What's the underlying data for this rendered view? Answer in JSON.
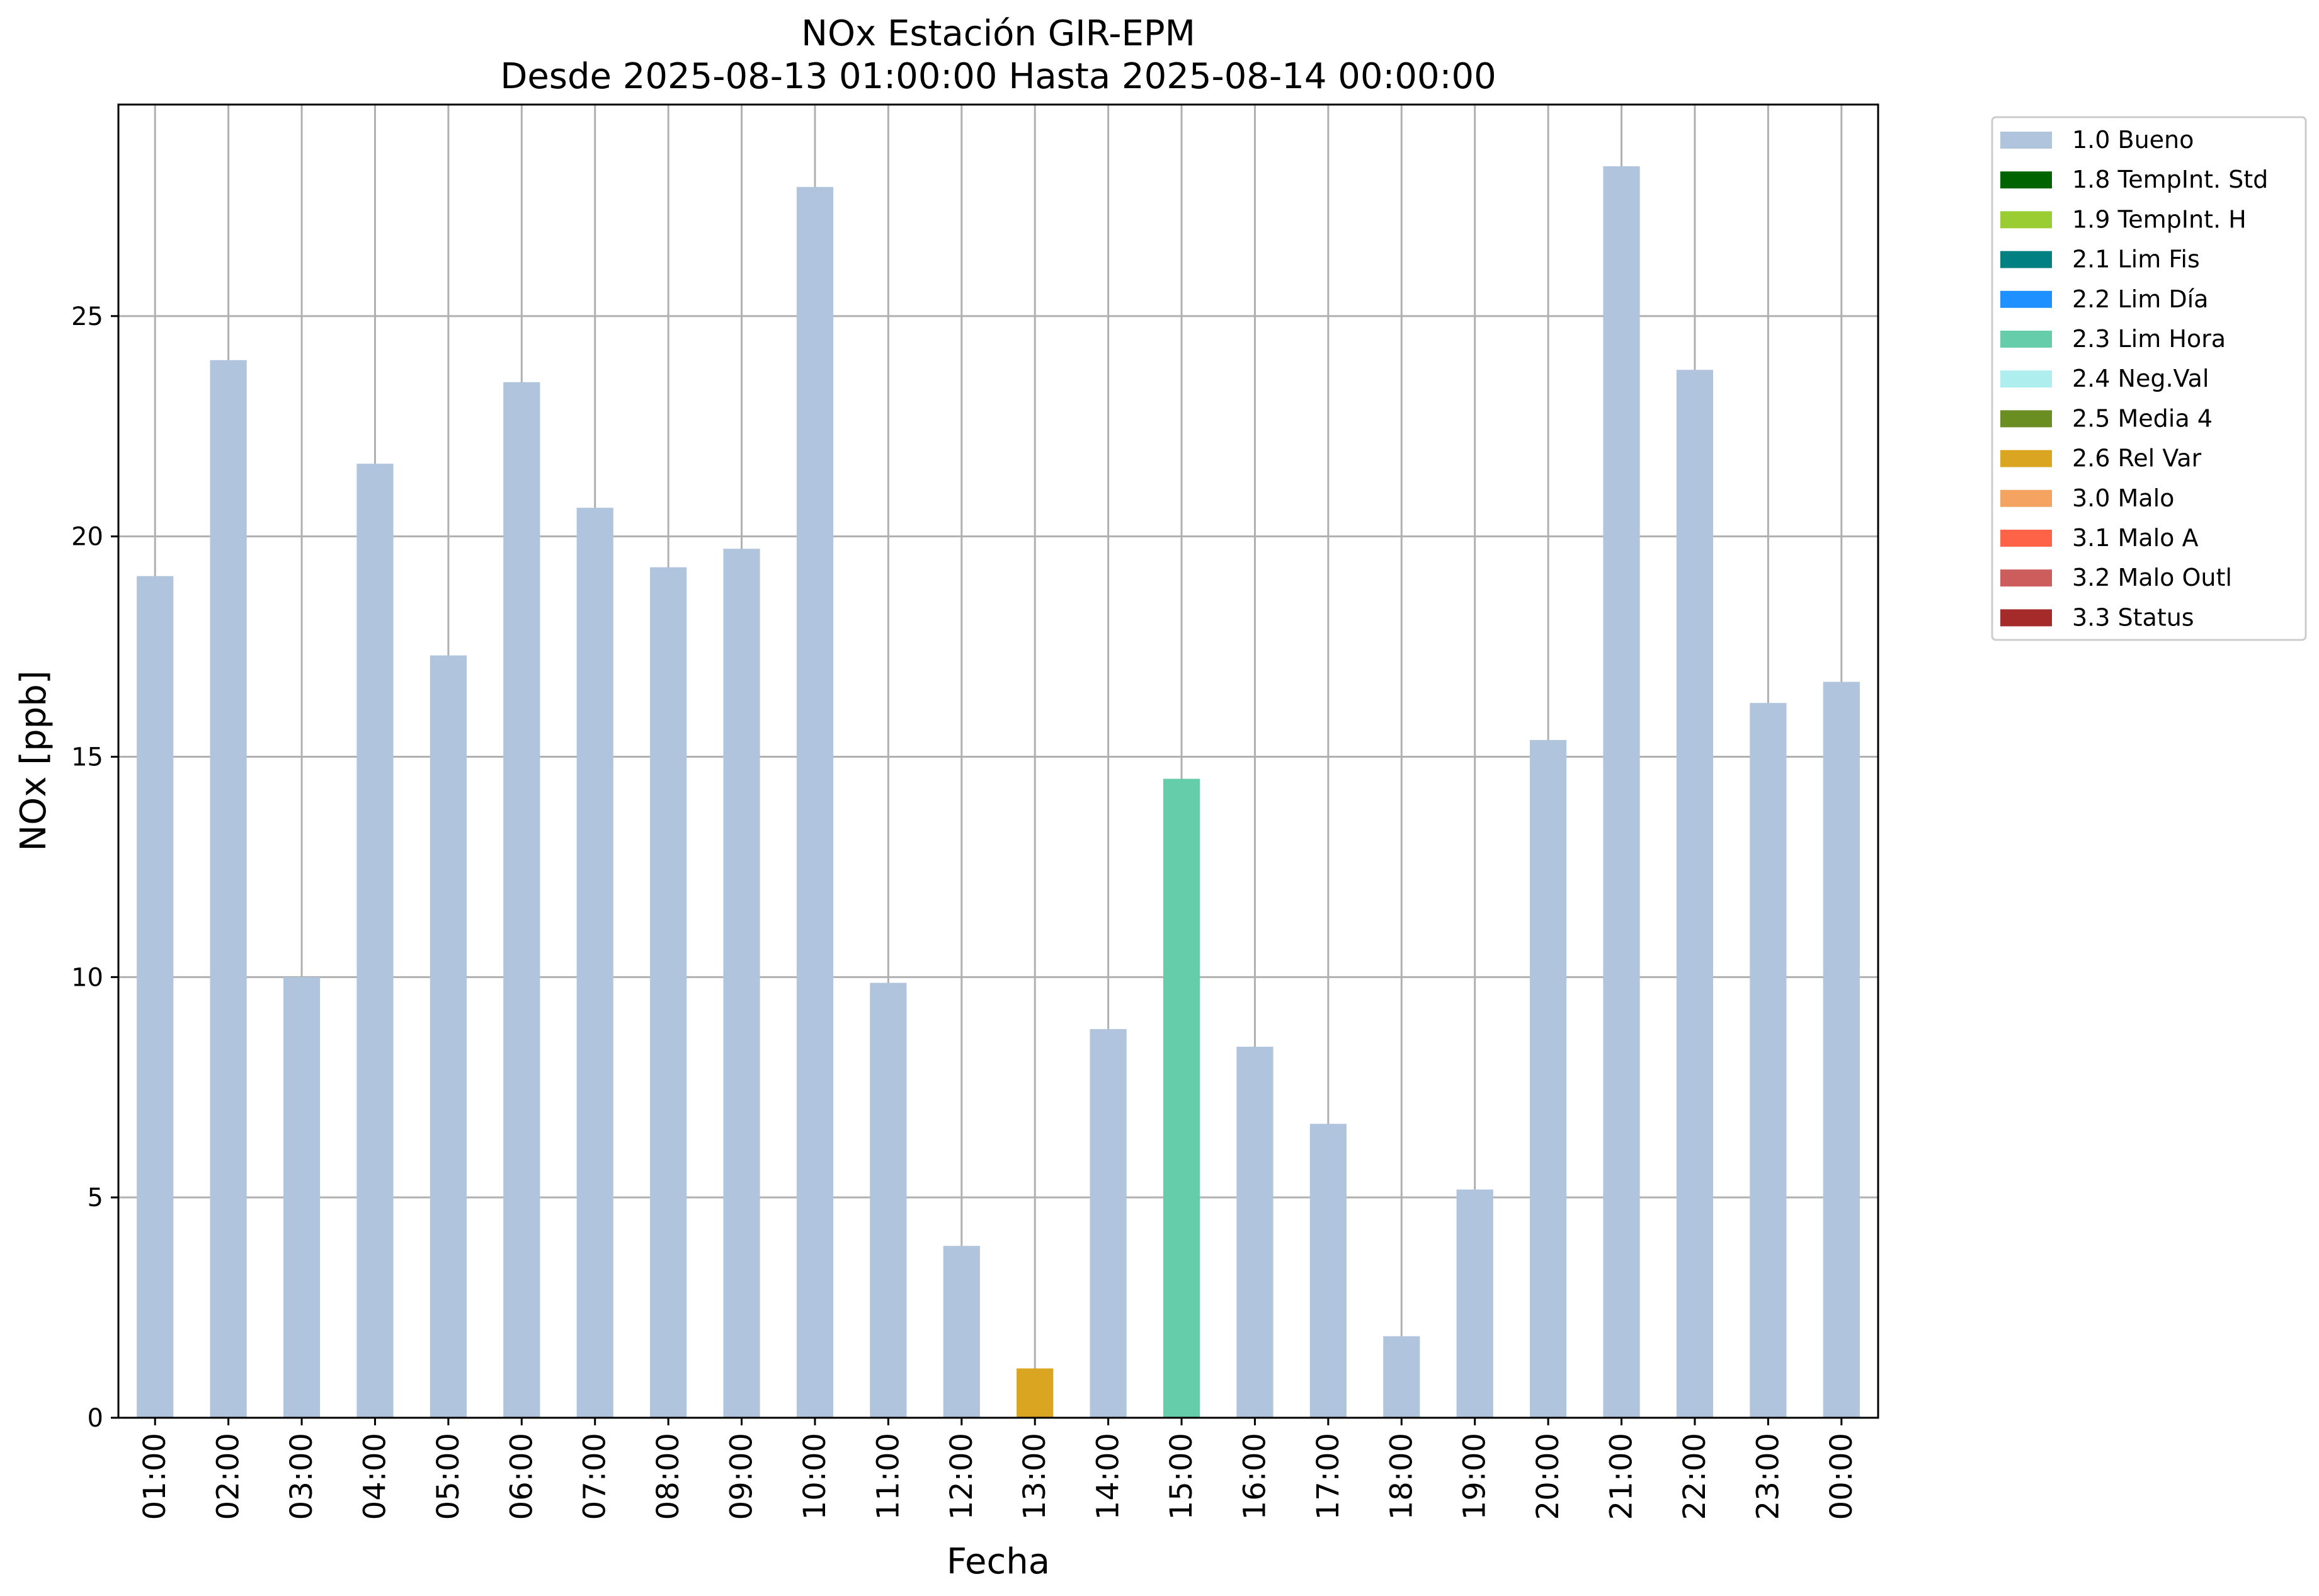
{
  "chart_data": {
    "type": "bar",
    "title": "NOx Estación GIR-EPM",
    "subtitle": "Desde 2025-08-13 01:00:00 Hasta 2025-08-14 00:00:00",
    "xlabel": "Fecha",
    "ylabel": "NOx [ppb]",
    "ylim": [
      0,
      29.8
    ],
    "yticks": [
      0,
      5,
      10,
      15,
      20,
      25
    ],
    "grid": true,
    "legend_position": "outside-top-right",
    "categories": [
      "01:00",
      "02:00",
      "03:00",
      "04:00",
      "05:00",
      "06:00",
      "07:00",
      "08:00",
      "09:00",
      "10:00",
      "11:00",
      "12:00",
      "13:00",
      "14:00",
      "15:00",
      "16:00",
      "17:00",
      "18:00",
      "19:00",
      "20:00",
      "21:00",
      "22:00",
      "23:00",
      "00:00"
    ],
    "values": [
      19.1,
      24.0,
      10.0,
      21.65,
      17.3,
      23.5,
      20.65,
      19.3,
      19.72,
      27.93,
      9.87,
      3.9,
      1.12,
      8.82,
      14.5,
      8.42,
      6.67,
      1.85,
      5.18,
      15.38,
      28.4,
      23.78,
      16.22,
      16.7
    ],
    "flags": [
      "1.0 Bueno",
      "1.0 Bueno",
      "1.0 Bueno",
      "1.0 Bueno",
      "1.0 Bueno",
      "1.0 Bueno",
      "1.0 Bueno",
      "1.0 Bueno",
      "1.0 Bueno",
      "1.0 Bueno",
      "1.0 Bueno",
      "1.0 Bueno",
      "2.6 Rel Var",
      "1.0 Bueno",
      "2.3 Lim Hora",
      "1.0 Bueno",
      "1.0 Bueno",
      "1.0 Bueno",
      "1.0 Bueno",
      "1.0 Bueno",
      "1.0 Bueno",
      "1.0 Bueno",
      "1.0 Bueno",
      "1.0 Bueno"
    ],
    "legend": [
      {
        "label": "1.0 Bueno",
        "color": "#b0c4de"
      },
      {
        "label": "1.8 TempInt. Std",
        "color": "#006400"
      },
      {
        "label": "1.9 TempInt. H",
        "color": "#9acd32"
      },
      {
        "label": "2.1 Lim Fis",
        "color": "#008080"
      },
      {
        "label": "2.2 Lim Día",
        "color": "#1e90ff"
      },
      {
        "label": "2.3 Lim Hora",
        "color": "#66cdaa"
      },
      {
        "label": "2.4 Neg.Val",
        "color": "#afeeee"
      },
      {
        "label": "2.5 Media 4",
        "color": "#6b8e23"
      },
      {
        "label": "2.6 Rel Var",
        "color": "#daa520"
      },
      {
        "label": "3.0 Malo",
        "color": "#f4a460"
      },
      {
        "label": "3.1 Malo A",
        "color": "#ff6347"
      },
      {
        "label": "3.2 Malo Outl",
        "color": "#cd5c5c"
      },
      {
        "label": "3.3 Status",
        "color": "#a52a2a"
      }
    ]
  }
}
